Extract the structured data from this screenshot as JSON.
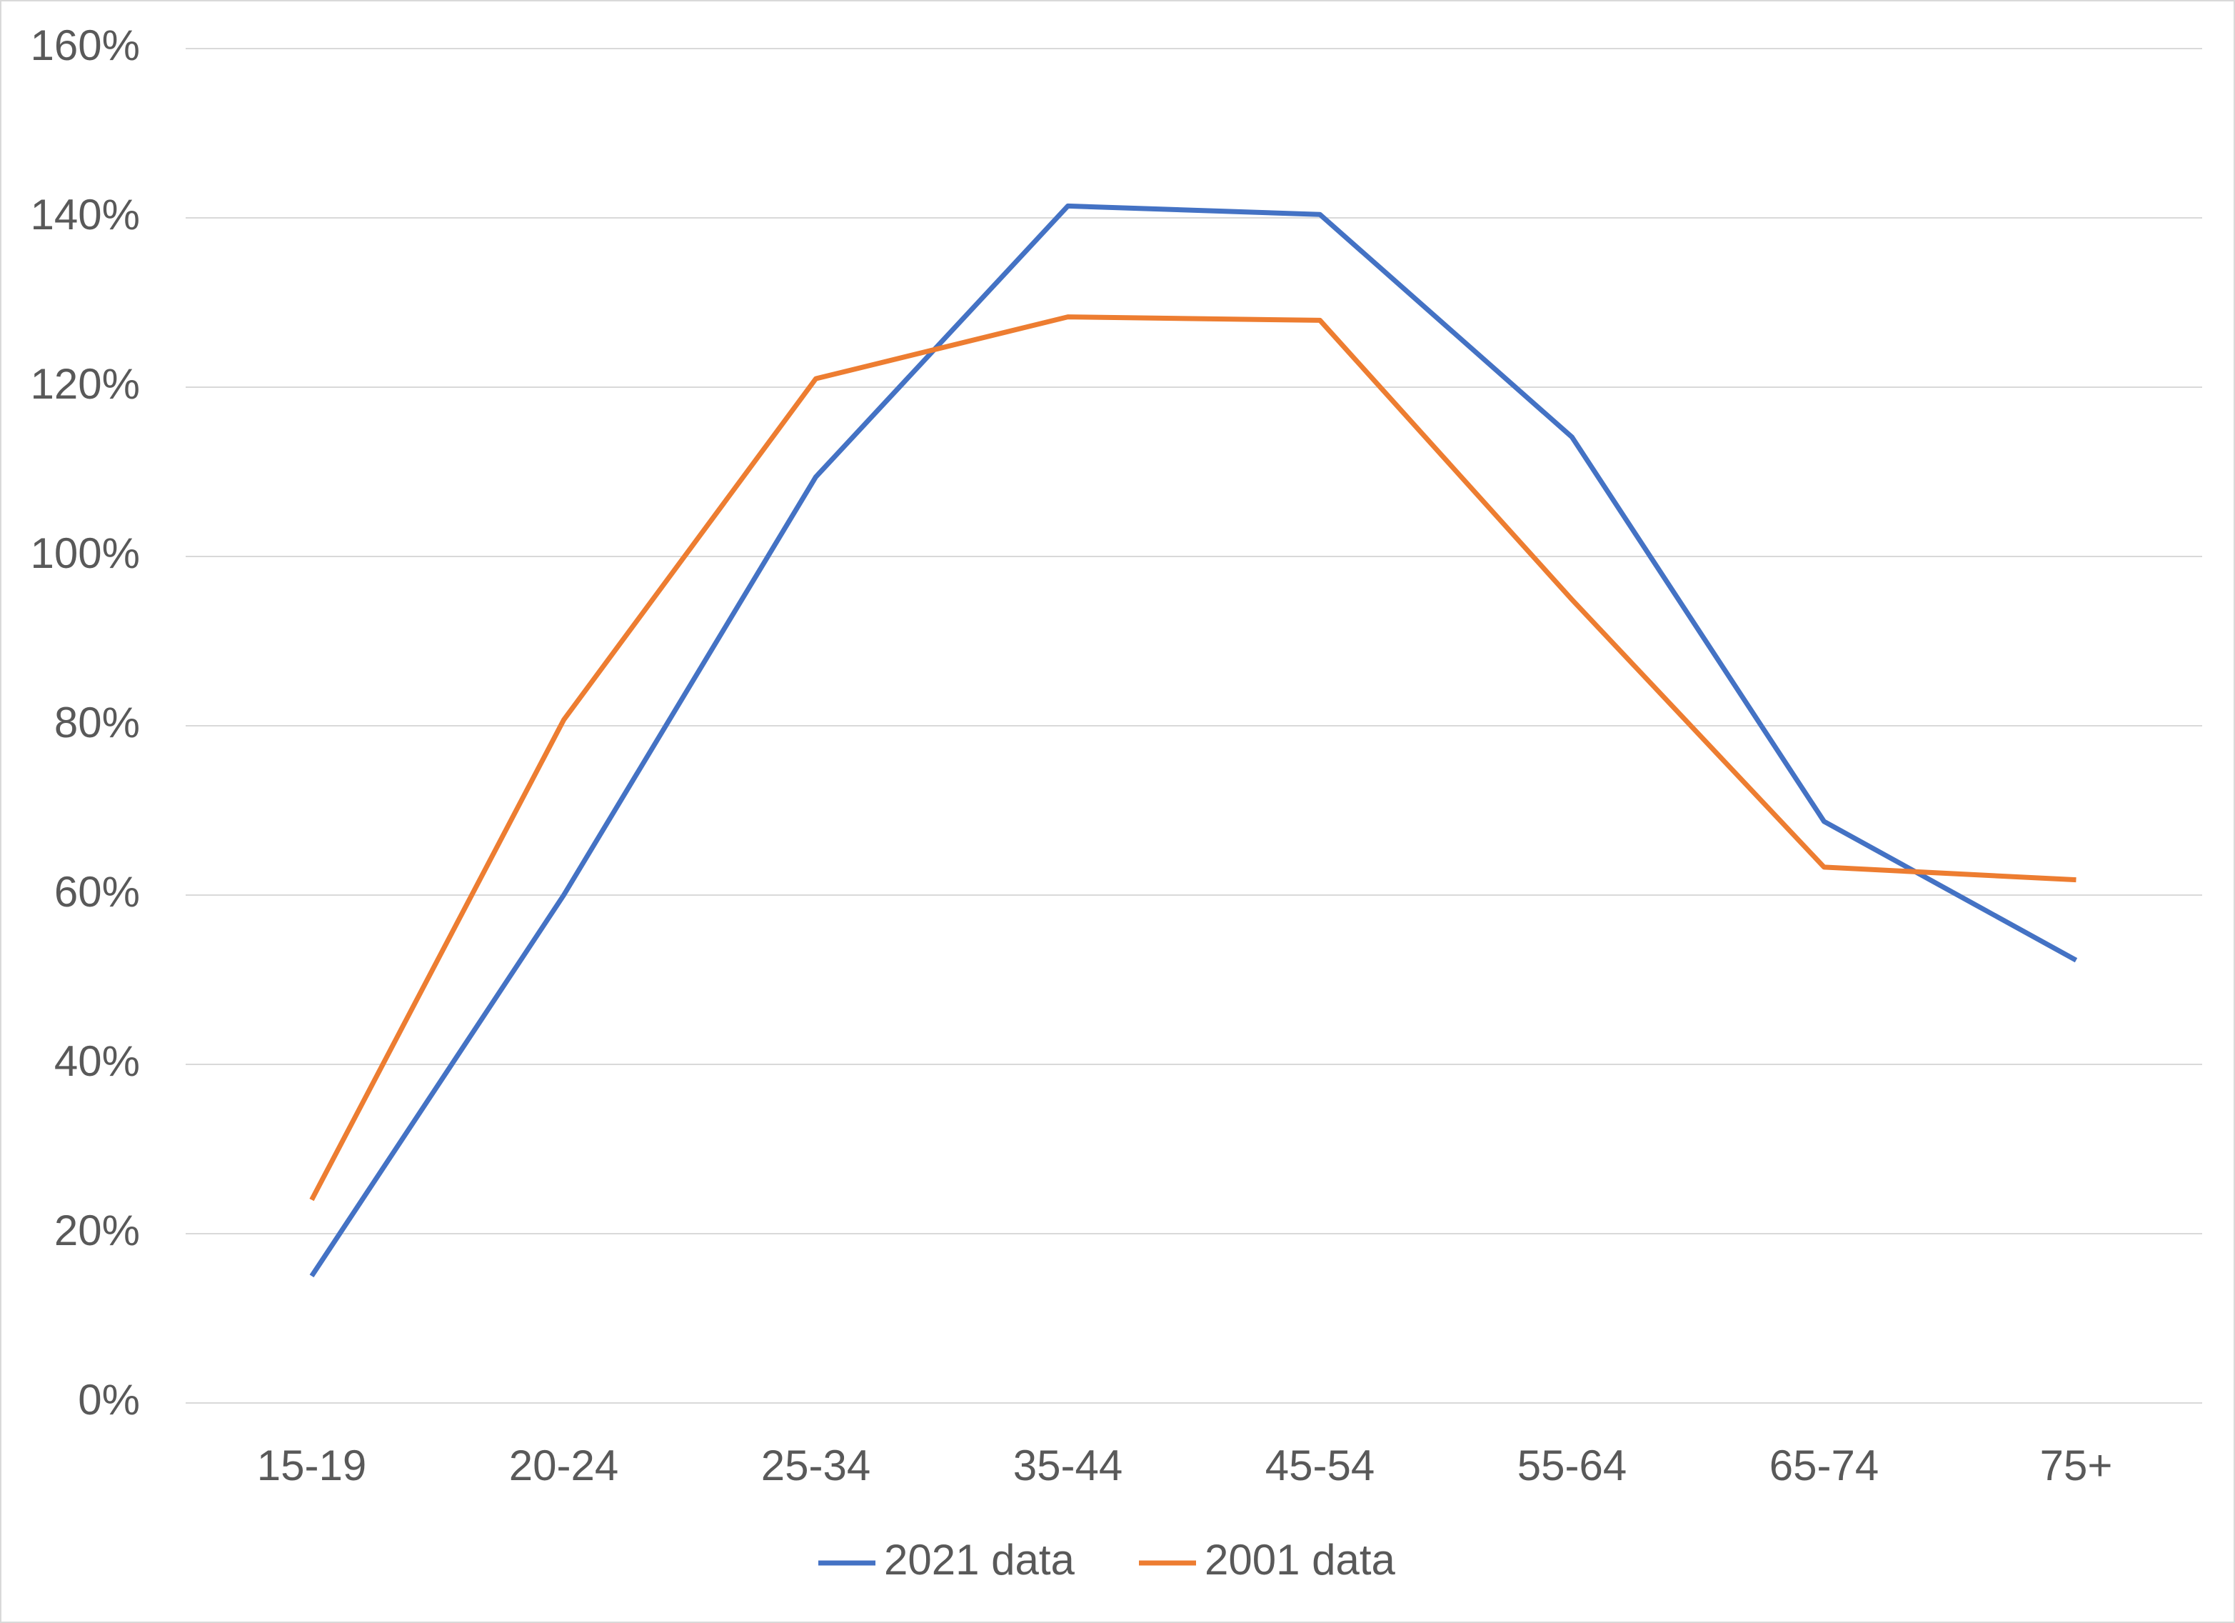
{
  "chart_data": {
    "type": "line",
    "categories": [
      "15-19",
      "20-24",
      "25-34",
      "35-44",
      "45-54",
      "55-64",
      "65-74",
      "75+"
    ],
    "series": [
      {
        "name": "2021 data",
        "color": "#4472c4",
        "values": [
          15,
          60,
          109.4,
          141.4,
          140.4,
          114.1,
          68.7,
          52.3
        ]
      },
      {
        "name": "2001 data",
        "color": "#ed7d31",
        "values": [
          24,
          80.7,
          121,
          128.3,
          127.9,
          94.9,
          63.3,
          61.8
        ]
      }
    ],
    "ylim": [
      0,
      160
    ],
    "yticks": [
      {
        "value": 0,
        "label": "0%"
      },
      {
        "value": 20,
        "label": "20%"
      },
      {
        "value": 40,
        "label": "40%"
      },
      {
        "value": 60,
        "label": "60%"
      },
      {
        "value": 80,
        "label": "80%"
      },
      {
        "value": 100,
        "label": "100%"
      },
      {
        "value": 120,
        "label": "120%"
      },
      {
        "value": 140,
        "label": "140%"
      },
      {
        "value": 160,
        "label": "160%"
      }
    ],
    "grid": true,
    "legend": "bottom"
  }
}
